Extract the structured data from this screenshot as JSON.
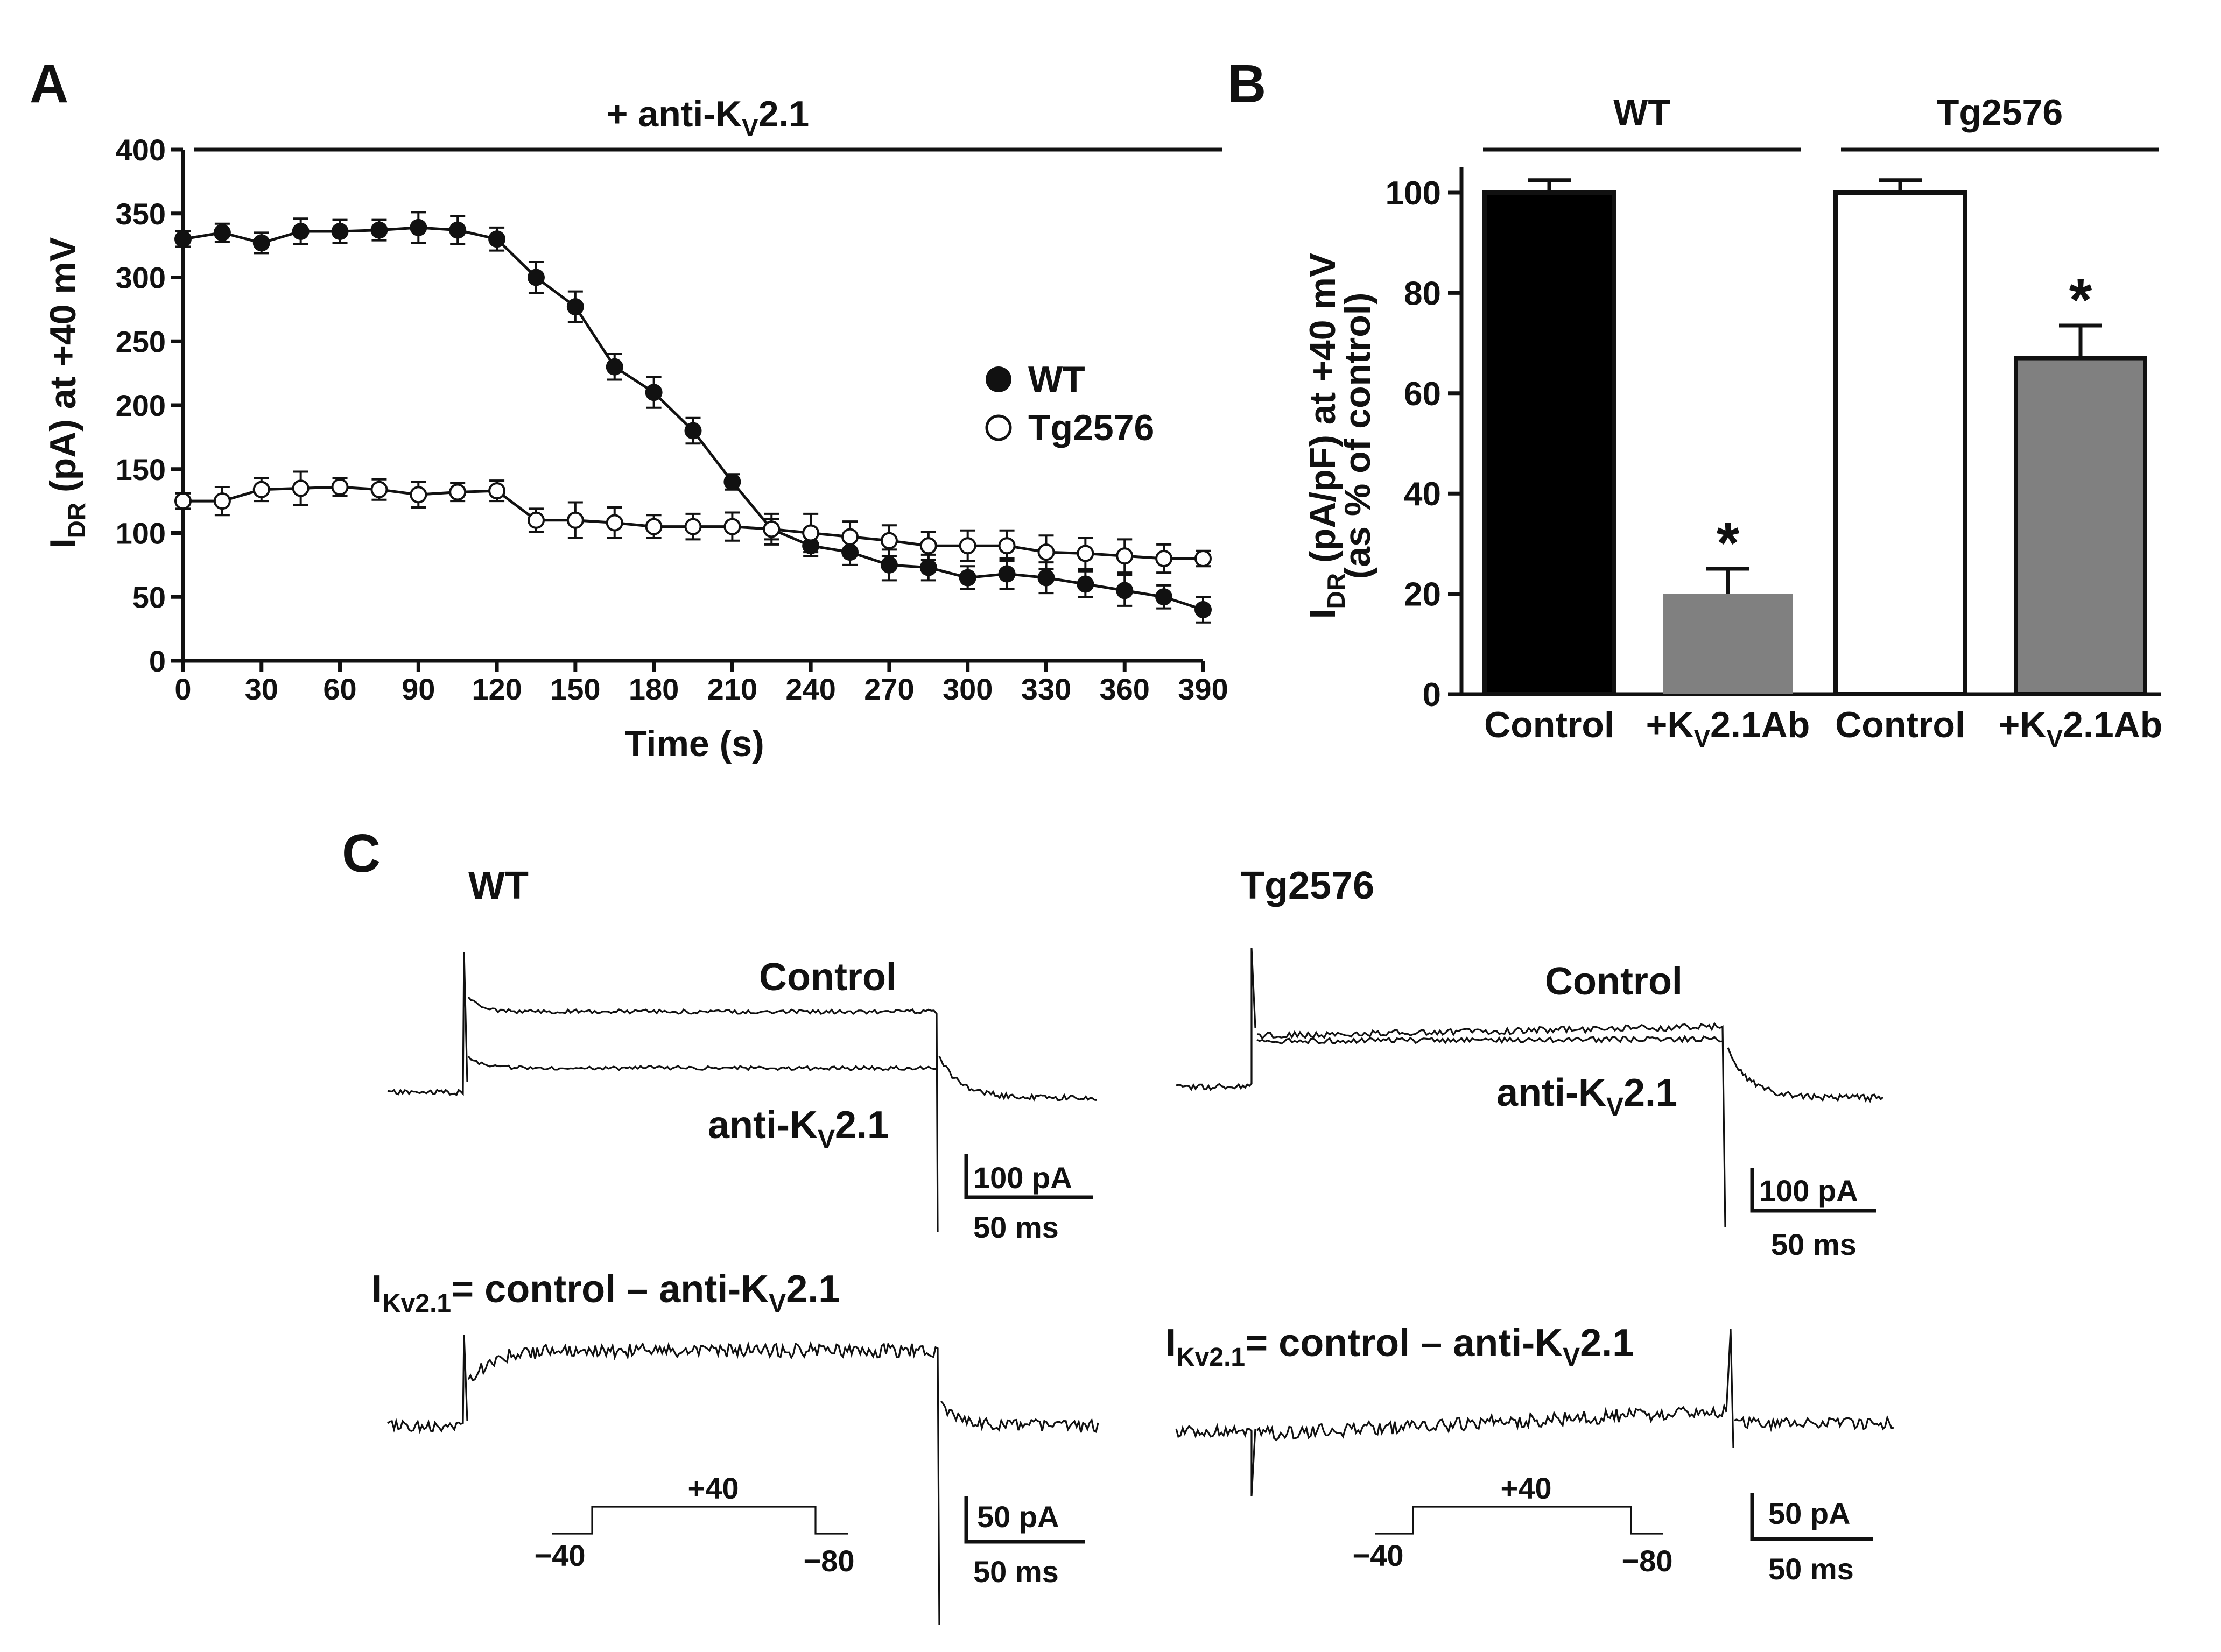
{
  "colors": {
    "ink": "#111111",
    "wt_bar": "#000000",
    "tg_bar": "#ffffff",
    "ab_bar": "#808080"
  },
  "panel_a": {
    "letter": "A",
    "top_label": {
      "prefix": "+ anti-K",
      "sub": "V",
      "suffix": "2.1"
    },
    "xlabel": "Time (s)",
    "ylabel": {
      "main": "I",
      "sub": "DR",
      "rest": " (pA) at +40 mV"
    },
    "legend": {
      "wt": "WT",
      "tg": "Tg2576"
    }
  },
  "panel_b": {
    "letter": "B",
    "groups": [
      "WT",
      "Tg2576"
    ],
    "ylabel_line1": {
      "main": "I",
      "sub": "DR",
      "rest": " (pA/pF) at +40 mV"
    },
    "ylabel_line2": "(as % of control)",
    "xtick_control": "Control",
    "xtick_ab": {
      "prefix": "+K",
      "sub": "V",
      "suffix": "2.1Ab"
    },
    "star": "*"
  },
  "panel_c": {
    "letter": "C",
    "wt_title": "WT",
    "tg_title": "Tg2576",
    "control_label": "Control",
    "anti_label": {
      "prefix": "anti-K",
      "sub": "V",
      "suffix": "2.1"
    },
    "diff_label": {
      "main": "I",
      "sub": "Kv2.1",
      "rest": "= control – anti-K",
      "sub2": "V",
      "tail": "2.1"
    },
    "scale_top": {
      "current": "100 pA",
      "time": "50 ms"
    },
    "scale_bottom": {
      "current": "50 pA",
      "time": "50 ms"
    },
    "protocol": {
      "step": "+40",
      "hold": "−40",
      "post": "−80"
    }
  },
  "chart_data": [
    {
      "id": "A",
      "type": "line",
      "title": "+ anti-KV2.1",
      "xlabel": "Time (s)",
      "ylabel": "IDR (pA) at +40 mV",
      "xlim": [
        0,
        390
      ],
      "ylim": [
        0,
        400
      ],
      "xticks": [
        0,
        30,
        60,
        90,
        120,
        150,
        180,
        210,
        240,
        270,
        300,
        330,
        360,
        390
      ],
      "yticks": [
        0,
        50,
        100,
        150,
        200,
        250,
        300,
        350,
        400
      ],
      "legend_position": "right",
      "series": [
        {
          "name": "WT",
          "marker": "filled-circle",
          "x": [
            0,
            15,
            30,
            45,
            60,
            75,
            90,
            105,
            120,
            135,
            150,
            165,
            180,
            195,
            210,
            225,
            240,
            255,
            270,
            285,
            300,
            315,
            330,
            345,
            360,
            375,
            390
          ],
          "y": [
            330,
            335,
            327,
            336,
            336,
            337,
            339,
            337,
            330,
            300,
            277,
            230,
            210,
            180,
            140,
            103,
            90,
            85,
            75,
            73,
            65,
            68,
            65,
            60,
            55,
            50,
            40
          ],
          "err": [
            6,
            7,
            8,
            10,
            9,
            8,
            12,
            11,
            9,
            12,
            12,
            10,
            12,
            10,
            6,
            8,
            8,
            10,
            12,
            10,
            9,
            12,
            12,
            10,
            12,
            9,
            10
          ]
        },
        {
          "name": "Tg2576",
          "marker": "open-circle",
          "x": [
            0,
            15,
            30,
            45,
            60,
            75,
            90,
            105,
            120,
            135,
            150,
            165,
            180,
            195,
            210,
            225,
            240,
            255,
            270,
            285,
            300,
            315,
            330,
            345,
            360,
            375,
            390
          ],
          "y": [
            125,
            125,
            134,
            135,
            136,
            134,
            130,
            132,
            133,
            110,
            110,
            108,
            105,
            105,
            105,
            103,
            100,
            97,
            94,
            90,
            90,
            90,
            85,
            84,
            82,
            80,
            80
          ],
          "err": [
            6,
            11,
            9,
            13,
            7,
            8,
            10,
            7,
            8,
            9,
            14,
            12,
            9,
            10,
            11,
            12,
            15,
            12,
            12,
            11,
            12,
            12,
            13,
            12,
            13,
            11,
            6
          ]
        }
      ]
    },
    {
      "id": "B",
      "type": "bar",
      "ylabel": "IDR (pA/pF) at +40 mV (as % of control)",
      "ylim": [
        0,
        100
      ],
      "yticks": [
        0,
        20,
        40,
        60,
        80,
        100
      ],
      "groups": [
        "WT",
        "Tg2576"
      ],
      "categories": [
        "Control",
        "+KV2.1Ab",
        "Control",
        "+KV2.1Ab"
      ],
      "values": [
        100,
        20,
        100,
        67
      ],
      "errors": [
        2.5,
        5,
        2.5,
        6.5
      ],
      "significant": [
        false,
        true,
        false,
        true
      ],
      "annotation": "*"
    }
  ]
}
